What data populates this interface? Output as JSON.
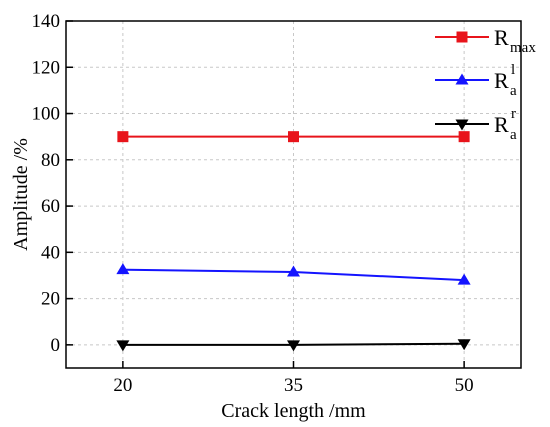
{
  "chart_data": {
    "type": "line",
    "x": [
      20,
      35,
      50
    ],
    "xlabel": "Crack length /mm",
    "ylabel": "Amplitude /%",
    "xticks": [
      "20",
      "35",
      "50"
    ],
    "yticks": [
      "0",
      "20",
      "40",
      "60",
      "80",
      "100",
      "120",
      "140"
    ],
    "ylim": [
      -10,
      140
    ],
    "xlim": [
      15,
      55
    ],
    "grid": "dashed",
    "legend_position": "top-right",
    "series": [
      {
        "name": "R_max",
        "label_main": "R",
        "label_sub": "max",
        "label_sup": "",
        "marker": "square",
        "color": "#e8141b",
        "values": [
          90,
          90,
          90
        ]
      },
      {
        "name": "R_a^l",
        "label_main": "R",
        "label_sub": "a",
        "label_sup": "l",
        "marker": "triangle-up",
        "color": "#1414ff",
        "values": [
          32.5,
          31.5,
          28
        ]
      },
      {
        "name": "R_a^r",
        "label_main": "R",
        "label_sub": "a",
        "label_sup": "r",
        "marker": "triangle-down",
        "color": "#000000",
        "values": [
          0,
          0,
          0.5
        ]
      }
    ]
  }
}
